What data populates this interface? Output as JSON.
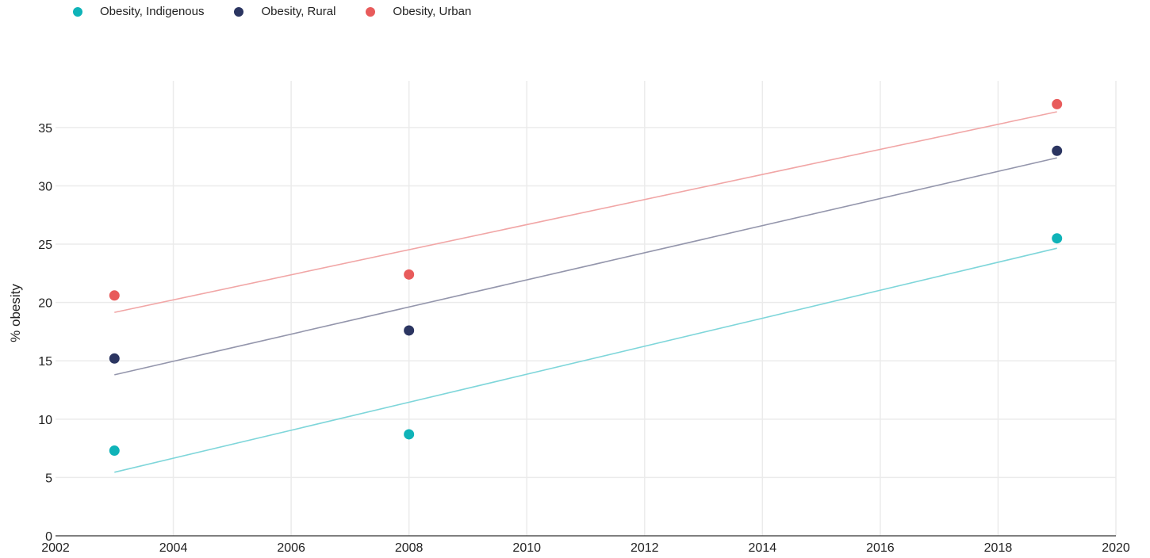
{
  "chart_data": {
    "type": "scatter",
    "title": "",
    "xlabel": "",
    "ylabel": "% obesity",
    "xlim": [
      2002,
      2020
    ],
    "ylim": [
      0,
      39
    ],
    "xticks": [
      2002,
      2004,
      2006,
      2008,
      2010,
      2012,
      2014,
      2016,
      2018,
      2020
    ],
    "yticks": [
      0,
      5,
      10,
      15,
      20,
      25,
      30,
      35
    ],
    "grid": true,
    "legend_position": "top-left",
    "series": [
      {
        "name": "Obesity, Indigenous",
        "color": "#0fb3b8",
        "trend_color": "#7fd6da",
        "x": [
          2003,
          2008,
          2019
        ],
        "values": [
          7.3,
          8.7,
          25.5
        ],
        "trend": {
          "x": [
            2003,
            2019
          ],
          "y": [
            5.45,
            24.65
          ]
        }
      },
      {
        "name": "Obesity, Rural",
        "color": "#2b3561",
        "trend_color": "#9496ac",
        "x": [
          2003,
          2008,
          2019
        ],
        "values": [
          15.2,
          17.6,
          33.0
        ],
        "trend": {
          "x": [
            2003,
            2019
          ],
          "y": [
            13.8,
            32.4
          ]
        }
      },
      {
        "name": "Obesity, Urban",
        "color": "#e85b5b",
        "trend_color": "#f1a6a6",
        "x": [
          2003,
          2008,
          2019
        ],
        "values": [
          20.6,
          22.4,
          37.0
        ],
        "trend": {
          "x": [
            2003,
            2019
          ],
          "y": [
            19.15,
            36.35
          ]
        }
      }
    ]
  }
}
